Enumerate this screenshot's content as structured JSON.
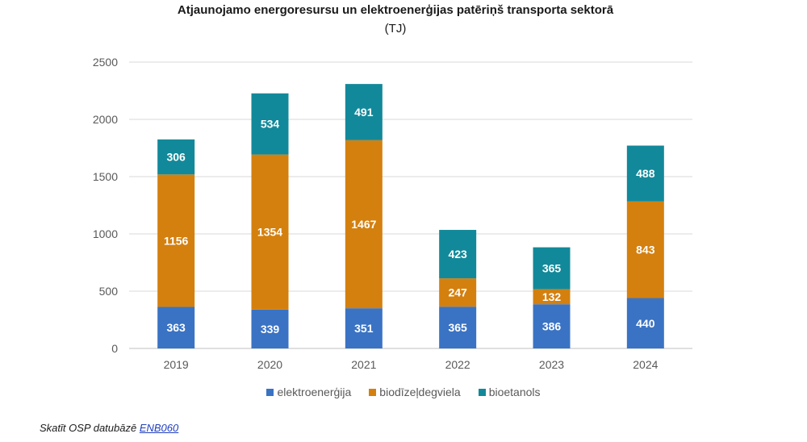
{
  "chart_data": {
    "type": "bar",
    "stacked": true,
    "title": "Atjaunojamo energoresursu un elektroenerģijas patēriņš transporta sektorā",
    "subtitle": "(TJ)",
    "categories": [
      "2019",
      "2020",
      "2021",
      "2022",
      "2023",
      "2024"
    ],
    "series": [
      {
        "name": "elektroenerģija",
        "color": "#3a73c4",
        "values": [
          363,
          339,
          351,
          365,
          386,
          440
        ]
      },
      {
        "name": "biodīzeļdegviela",
        "color": "#d4800f",
        "values": [
          1156,
          1354,
          1467,
          247,
          132,
          843
        ]
      },
      {
        "name": "bioetanols",
        "color": "#12899a",
        "values": [
          306,
          534,
          491,
          423,
          365,
          488
        ]
      }
    ],
    "ylim": [
      0,
      2500
    ],
    "yticks": [
      "0",
      "500",
      "1000",
      "1500",
      "2000",
      "2500"
    ],
    "grid": true,
    "legend_position": "bottom"
  },
  "footer": {
    "text": "Skatīt OSP datubāzē ",
    "link_text": "ENB060"
  }
}
